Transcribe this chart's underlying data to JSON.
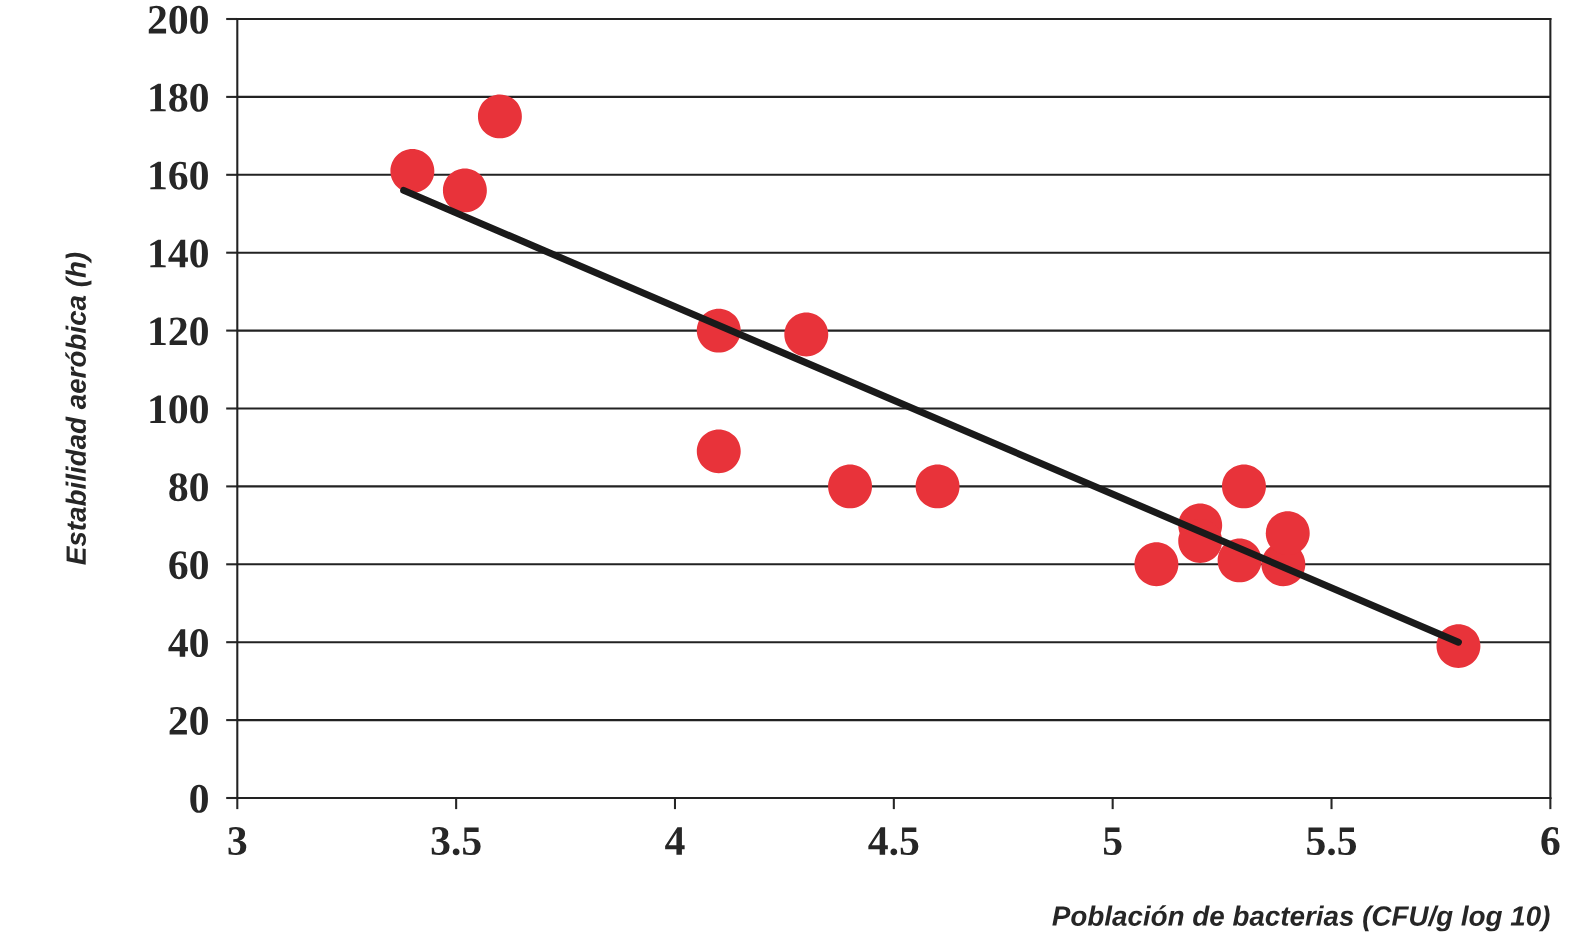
{
  "chart_data": {
    "type": "scatter",
    "xlabel": "Población de bacterias (CFU/g log 10)",
    "ylabel": "Estabilidad aeróbica (h)",
    "xlim": [
      3,
      6
    ],
    "xticks": [
      3,
      3.5,
      4,
      4.5,
      5,
      5.5,
      6
    ],
    "ylim": [
      0,
      200
    ],
    "yticks": [
      0,
      20,
      40,
      60,
      80,
      100,
      120,
      140,
      160,
      180,
      200
    ],
    "grid": "y",
    "series": [
      {
        "marker": "circle",
        "color": "#e8333a",
        "x": [
          3.4,
          3.52,
          3.6,
          4.1,
          4.3,
          4.1,
          4.4,
          4.6,
          5.1,
          5.2,
          5.2,
          5.3,
          5.29,
          5.39,
          5.4,
          5.79
        ],
        "values": [
          161,
          156,
          175,
          120,
          119,
          89,
          80,
          80,
          60,
          70,
          66,
          80,
          61,
          60,
          68,
          39
        ]
      },
      {
        "type": "line",
        "color": "#1a1a1a",
        "x": [
          3.38,
          5.79
        ],
        "values": [
          156,
          40
        ]
      }
    ]
  }
}
